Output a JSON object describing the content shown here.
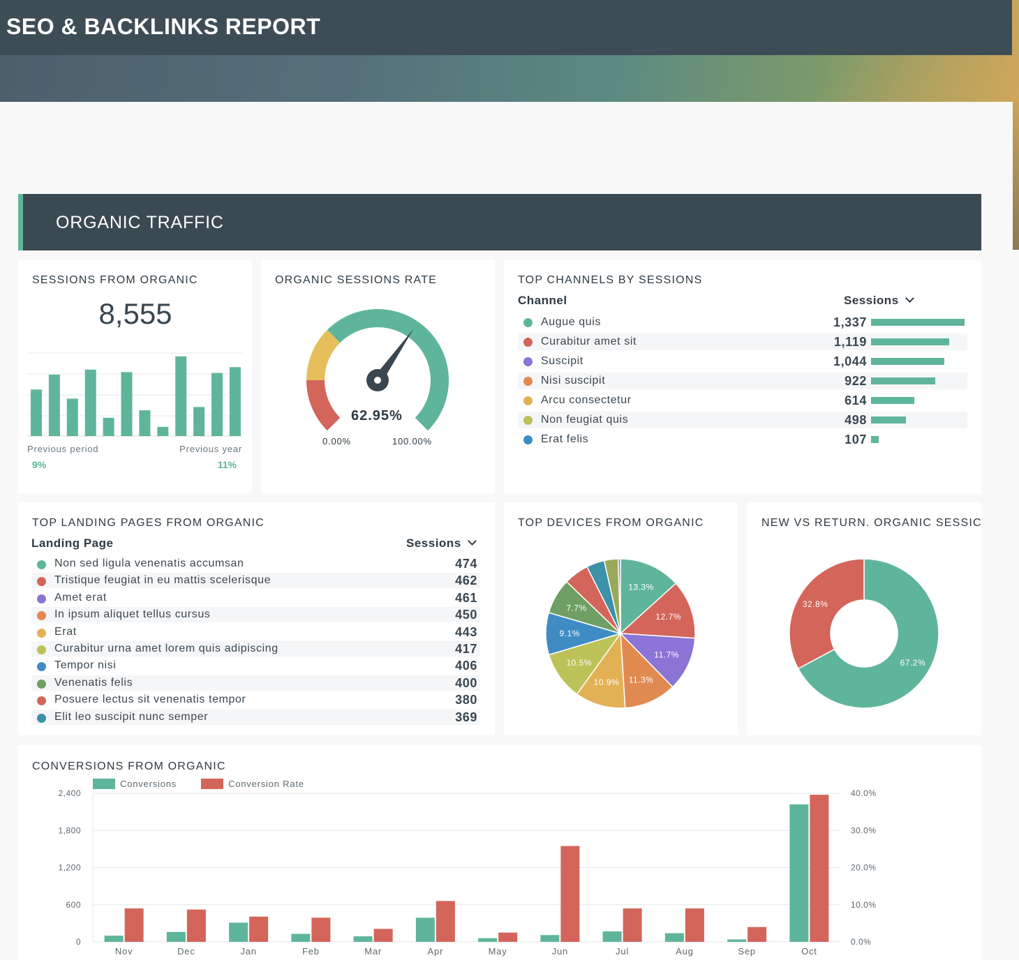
{
  "report_title": "SEO & BACKLINKS REPORT",
  "section_title": "ORGANIC TRAFFIC",
  "sessions": {
    "title": "SESSIONS FROM ORGANIC",
    "value": "8,555",
    "prev_period_label": "Previous period",
    "prev_period_value": "9%",
    "prev_year_label": "Previous year",
    "prev_year_value": "11%",
    "spark": [
      56,
      74,
      45,
      80,
      22,
      77,
      31,
      11,
      96,
      35,
      76,
      83
    ]
  },
  "rate": {
    "title": "ORGANIC SESSIONS RATE",
    "value": "62.95%",
    "value_num": 62.95,
    "min_label": "0.00%",
    "max_label": "100.00%"
  },
  "channels": {
    "title": "TOP CHANNELS BY SESSIONS",
    "col1": "Channel",
    "col2": "Sessions",
    "items": [
      {
        "label": "Augue quis",
        "value": "1,337",
        "num": 1337,
        "color": "#5fb59b"
      },
      {
        "label": "Curabitur amet sit",
        "value": "1,119",
        "num": 1119,
        "color": "#d3655a"
      },
      {
        "label": "Suscipit",
        "value": "1,044",
        "num": 1044,
        "color": "#8a74d6"
      },
      {
        "label": "Nisi suscipit",
        "value": "922",
        "num": 922,
        "color": "#e08a52"
      },
      {
        "label": "Arcu consectetur",
        "value": "614",
        "num": 614,
        "color": "#e2b155"
      },
      {
        "label": "Non feugiat quis",
        "value": "498",
        "num": 498,
        "color": "#bcc257"
      },
      {
        "label": "Erat felis",
        "value": "107",
        "num": 107,
        "color": "#3f8cc4"
      }
    ]
  },
  "landing": {
    "title": "TOP LANDING PAGES FROM ORGANIC",
    "col1": "Landing Page",
    "col2": "Sessions",
    "items": [
      {
        "label": "Non sed ligula venenatis accumsan",
        "value": "474",
        "color": "#5fb59b"
      },
      {
        "label": "Tristique feugiat in eu mattis scelerisque",
        "value": "462",
        "color": "#d3655a"
      },
      {
        "label": "Amet erat",
        "value": "461",
        "color": "#8a74d6"
      },
      {
        "label": "In ipsum aliquet tellus cursus",
        "value": "450",
        "color": "#e08a52"
      },
      {
        "label": "Erat",
        "value": "443",
        "color": "#e2b155"
      },
      {
        "label": "Curabitur urna amet lorem quis adipiscing",
        "value": "417",
        "color": "#bcc257"
      },
      {
        "label": "Tempor nisi",
        "value": "406",
        "color": "#3f8cc4"
      },
      {
        "label": "Venenatis felis",
        "value": "400",
        "color": "#6f9f64"
      },
      {
        "label": "Posuere lectus sit venenatis tempor",
        "value": "380",
        "color": "#d3655a"
      },
      {
        "label": "Elit leo suscipit nunc semper",
        "value": "369",
        "color": "#3c92a8"
      }
    ]
  },
  "devices": {
    "title": "TOP DEVICES FROM ORGANIC",
    "slices": [
      {
        "value": 13.3,
        "label": "13.3%",
        "color": "#5fb59b"
      },
      {
        "value": 12.7,
        "label": "12.7%",
        "color": "#d3655a"
      },
      {
        "value": 11.7,
        "label": "11.7%",
        "color": "#8a74d6"
      },
      {
        "value": 11.3,
        "label": "11.3%",
        "color": "#e08a52"
      },
      {
        "value": 10.9,
        "label": "10.9%",
        "color": "#e2b155"
      },
      {
        "value": 10.5,
        "label": "10.5%",
        "color": "#bcc257"
      },
      {
        "value": 9.1,
        "label": "9.1%",
        "color": "#3f8cc4"
      },
      {
        "value": 7.7,
        "label": "7.7%",
        "color": "#6f9f64"
      },
      {
        "value": 5.4,
        "label": "",
        "color": "#d3655a"
      },
      {
        "value": 3.9,
        "label": "",
        "color": "#3c92a8"
      },
      {
        "value": 3.0,
        "label": "",
        "color": "#9aa85a"
      },
      {
        "value": 0.5,
        "label": "",
        "color": "#7a86b8"
      }
    ]
  },
  "newret": {
    "title": "NEW VS RETURN. ORGANIC SESSIC",
    "slices": [
      {
        "value": 67.2,
        "label": "67.2%",
        "color": "#5fb59b"
      },
      {
        "value": 32.8,
        "label": "32.8%",
        "color": "#d3655a"
      }
    ]
  },
  "conversions": {
    "title": "CONVERSIONS FROM ORGANIC",
    "legend": [
      {
        "name": "Conversions",
        "color": "#5fb59b"
      },
      {
        "name": "Conversion Rate",
        "color": "#d3655a"
      }
    ],
    "left_ticks": [
      "2,400",
      "1,800",
      "1,200",
      "600",
      "0"
    ],
    "right_ticks": [
      "40.0%",
      "30.0%",
      "20.0%",
      "10.0%",
      "0.0%"
    ],
    "chart_data": {
      "type": "bar",
      "categories": [
        "Nov",
        "Dec",
        "Jan",
        "Feb",
        "Mar",
        "Apr",
        "May",
        "Jun",
        "Jul",
        "Aug",
        "Sep",
        "Oct"
      ],
      "series": [
        {
          "name": "Conversions",
          "axis": "left",
          "values": [
            100,
            160,
            310,
            130,
            90,
            390,
            60,
            110,
            170,
            140,
            40,
            2220
          ]
        },
        {
          "name": "Conversion Rate",
          "axis": "right",
          "values": [
            9.0,
            8.7,
            6.8,
            6.5,
            3.5,
            11.0,
            2.5,
            25.8,
            9.0,
            9.0,
            4.0,
            39.6
          ]
        }
      ],
      "ylim": [
        0,
        2400
      ],
      "y2lim": [
        0,
        40
      ]
    }
  }
}
